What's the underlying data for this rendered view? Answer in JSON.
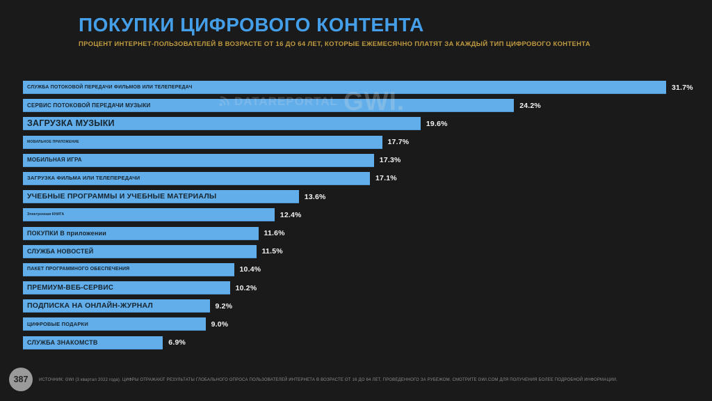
{
  "header": {
    "title": "ПОКУПКИ ЦИФРОВОГО КОНТЕНТА",
    "subtitle": "ПРОЦЕНТ ИНТЕРНЕТ-ПОЛЬЗОВАТЕЛЕЙ В ВОЗРАСТЕ ОТ 16 ДО 64 ЛЕТ, КОТОРЫЕ ЕЖЕМЕСЯЧНО ПЛАТЯТ ЗА КАЖДЫЙ ТИП ЦИФРОВОГО КОНТЕНТА"
  },
  "watermark": {
    "datareportal": "DATAREPORTAL",
    "gwi": "GWI."
  },
  "footer": {
    "page_number": "387",
    "source": "ИСТОЧНИК: GWI (3 квартал 2022 года). ЦИФРЫ ОТРАЖАЮТ РЕЗУЛЬТАТЫ ГЛОБАЛЬНОГО ОПРОСА ПОЛЬЗОВАТЕЛЕЙ ИНТЕРНЕТА В ВОЗРАСТЕ ОТ 16 ДО 64 ЛЕТ, ПРОВЕДЕННОГО ЗА РУБЕЖОМ. СМОТРИТЕ GWI.COM ДЛЯ ПОЛУЧЕНИЯ БОЛЕЕ ПОДРОБНОЙ ИНФОРМАЦИИ."
  },
  "colors": {
    "background": "#1a1a1a",
    "title_blue": "#459fe8",
    "subtitle_amber": "#bf9a3f",
    "bar_blue": "#62aeea",
    "bar_label_dark": "#16242e",
    "value_white": "#f3f3f3",
    "badge_gray": "#9a9a9a"
  },
  "chart_data": {
    "type": "bar",
    "orientation": "horizontal",
    "title": "ПОКУПКИ ЦИФРОВОГО КОНТЕНТА",
    "xlabel": "",
    "ylabel": "",
    "xlim": [
      0,
      33
    ],
    "grid": false,
    "legend": "none",
    "categories": [
      "СЛУЖБА ПОТОКОВОЙ ПЕРЕДАЧИ ФИЛЬМОВ ИЛИ ТЕЛЕПЕРЕДАЧ",
      "СЕРВИС ПОТОКОВОЙ ПЕРЕДАЧИ МУЗЫКИ",
      "ЗАГРУЗКА МУЗЫКИ",
      "МОБИЛЬНОЕ ПРИЛОЖЕНИЕ",
      "МОБИЛЬНАЯ ИГРА",
      "ЗАГРУЗКА ФИЛЬМА ИЛИ ТЕЛЕПЕРЕДАЧИ",
      "УЧЕБНЫЕ ПРОГРАММЫ И УЧЕБНЫЕ МАТЕРИАЛЫ",
      "Электронная КНИГА",
      "ПОКУПКИ В приложении",
      "СЛУЖБА НОВОСТЕЙ",
      "ПАКЕТ ПРОГРАММНОГО ОБЕСПЕЧЕНИЯ",
      "ПРЕМИУМ-ВЕБ-СЕРВИС",
      "ПОДПИСКА НА ОНЛАЙН-ЖУРНАЛ",
      "ЦИФРОВЫЕ ПОДАРКИ",
      "СЛУЖБА ЗНАКОМСТВ"
    ],
    "values": [
      31.7,
      24.2,
      19.6,
      17.7,
      17.3,
      17.1,
      13.6,
      12.4,
      11.6,
      11.5,
      10.4,
      10.2,
      9.2,
      9.0,
      6.9
    ],
    "value_labels": [
      "31.7%",
      "24.2%",
      "19.6%",
      "17.7%",
      "17.3%",
      "17.1%",
      "13.6%",
      "12.4%",
      "11.6%",
      "11.5%",
      "10.4%",
      "10.2%",
      "9.2%",
      "9.0%",
      "6.9%"
    ]
  }
}
